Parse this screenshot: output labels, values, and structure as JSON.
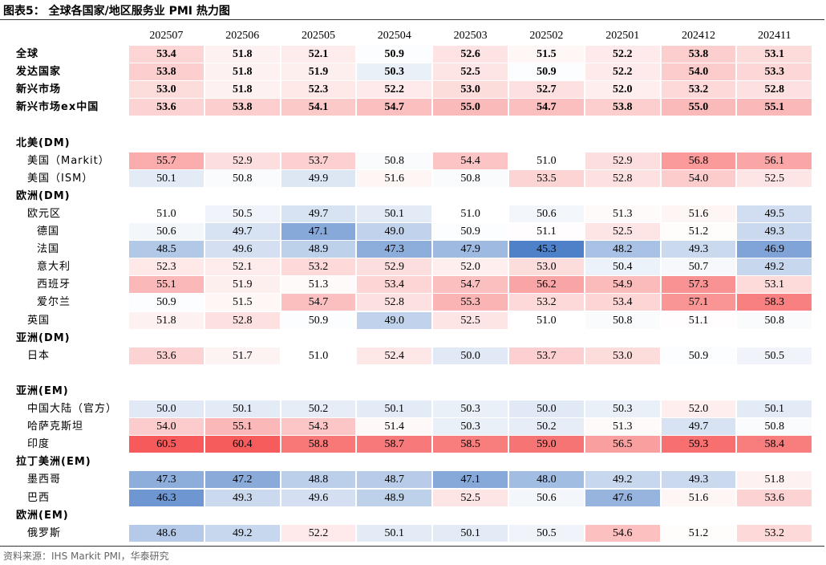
{
  "title": "图表5：  全球各国家/地区服务业 PMI 热力图",
  "source": "资料来源：IHS Markit PMI，华泰研究",
  "chart_data": {
    "type": "heatmap",
    "title": "图表5：  全球各国家/地区服务业 PMI 热力图",
    "columns": [
      "202507",
      "202506",
      "202505",
      "202504",
      "202503",
      "202502",
      "202501",
      "202412",
      "202411"
    ],
    "rows": [
      {
        "label": "全球",
        "kind": "summary",
        "indent": 0,
        "values": [
          53.4,
          51.8,
          52.1,
          50.9,
          52.6,
          51.5,
          52.2,
          53.8,
          53.1
        ]
      },
      {
        "label": "发达国家",
        "kind": "summary",
        "indent": 0,
        "values": [
          53.8,
          51.8,
          51.9,
          50.3,
          52.5,
          50.9,
          52.2,
          54.0,
          53.3
        ]
      },
      {
        "label": "新兴市场",
        "kind": "summary",
        "indent": 0,
        "values": [
          53.0,
          51.8,
          52.3,
          52.2,
          53.0,
          52.7,
          52.0,
          53.2,
          52.8
        ]
      },
      {
        "label": "新兴市场ex中国",
        "kind": "summary",
        "indent": 0,
        "values": [
          53.6,
          53.8,
          54.1,
          54.7,
          55.0,
          54.7,
          53.8,
          55.0,
          55.1
        ]
      },
      {
        "label": "",
        "kind": "blank"
      },
      {
        "label": "北美(DM)",
        "kind": "group"
      },
      {
        "label": "美国（Markit）",
        "kind": "item",
        "indent": 1,
        "values": [
          55.7,
          52.9,
          53.7,
          50.8,
          54.4,
          51.0,
          52.9,
          56.8,
          56.1
        ]
      },
      {
        "label": "美国（ISM）",
        "kind": "item",
        "indent": 1,
        "values": [
          50.1,
          50.8,
          49.9,
          51.6,
          50.8,
          53.5,
          52.8,
          54.0,
          52.5
        ]
      },
      {
        "label": "欧洲(DM)",
        "kind": "group"
      },
      {
        "label": "欧元区",
        "kind": "item",
        "indent": 1,
        "values": [
          51.0,
          50.5,
          49.7,
          50.1,
          51.0,
          50.6,
          51.3,
          51.6,
          49.5
        ]
      },
      {
        "label": "德国",
        "kind": "item",
        "indent": 2,
        "values": [
          50.6,
          49.7,
          47.1,
          49.0,
          50.9,
          51.1,
          52.5,
          51.2,
          49.3
        ]
      },
      {
        "label": "法国",
        "kind": "item",
        "indent": 2,
        "values": [
          48.5,
          49.6,
          48.9,
          47.3,
          47.9,
          45.3,
          48.2,
          49.3,
          46.9
        ]
      },
      {
        "label": "意大利",
        "kind": "item",
        "indent": 2,
        "values": [
          52.3,
          52.1,
          53.2,
          52.9,
          52.0,
          53.0,
          50.4,
          50.7,
          49.2
        ]
      },
      {
        "label": "西班牙",
        "kind": "item",
        "indent": 2,
        "values": [
          55.1,
          51.9,
          51.3,
          53.4,
          54.7,
          56.2,
          54.9,
          57.3,
          53.1
        ]
      },
      {
        "label": "爱尔兰",
        "kind": "item",
        "indent": 2,
        "values": [
          50.9,
          51.5,
          54.7,
          52.8,
          55.3,
          53.2,
          53.4,
          57.1,
          58.3
        ]
      },
      {
        "label": "英国",
        "kind": "item",
        "indent": 1,
        "values": [
          51.8,
          52.8,
          50.9,
          49.0,
          52.5,
          51.0,
          50.8,
          51.1,
          50.8
        ]
      },
      {
        "label": "亚洲(DM)",
        "kind": "group"
      },
      {
        "label": "日本",
        "kind": "item",
        "indent": 1,
        "values": [
          53.6,
          51.7,
          51.0,
          52.4,
          50.0,
          53.7,
          53.0,
          50.9,
          50.5
        ]
      },
      {
        "label": "",
        "kind": "blank"
      },
      {
        "label": "亚洲(EM)",
        "kind": "group"
      },
      {
        "label": "中国大陆（官方）",
        "kind": "item",
        "indent": 1,
        "values": [
          50.0,
          50.1,
          50.2,
          50.1,
          50.3,
          50.0,
          50.3,
          52.0,
          50.1
        ]
      },
      {
        "label": "哈萨克斯坦",
        "kind": "item",
        "indent": 1,
        "values": [
          54.0,
          55.1,
          54.3,
          51.4,
          50.3,
          50.2,
          51.3,
          49.7,
          50.8
        ]
      },
      {
        "label": "印度",
        "kind": "item",
        "indent": 1,
        "values": [
          60.5,
          60.4,
          58.8,
          58.7,
          58.5,
          59.0,
          56.5,
          59.3,
          58.4
        ]
      },
      {
        "label": "拉丁美洲(EM)",
        "kind": "group"
      },
      {
        "label": "墨西哥",
        "kind": "item",
        "indent": 1,
        "values": [
          47.3,
          47.2,
          48.8,
          48.7,
          47.1,
          48.0,
          49.2,
          49.3,
          51.8
        ]
      },
      {
        "label": "巴西",
        "kind": "item",
        "indent": 1,
        "values": [
          46.3,
          49.3,
          49.6,
          48.9,
          52.5,
          50.6,
          47.6,
          51.6,
          53.6
        ]
      },
      {
        "label": "欧洲(EM)",
        "kind": "group"
      },
      {
        "label": "俄罗斯",
        "kind": "item",
        "indent": 1,
        "values": [
          48.6,
          49.2,
          52.2,
          50.1,
          50.1,
          50.5,
          54.6,
          51.2,
          53.2
        ]
      }
    ],
    "color_scale": {
      "center": 51.0,
      "low_color": "#4f81c8",
      "high_color": "#f65a5a",
      "mid_color": "#ffffff",
      "low": 45.3,
      "high": 60.5
    }
  }
}
